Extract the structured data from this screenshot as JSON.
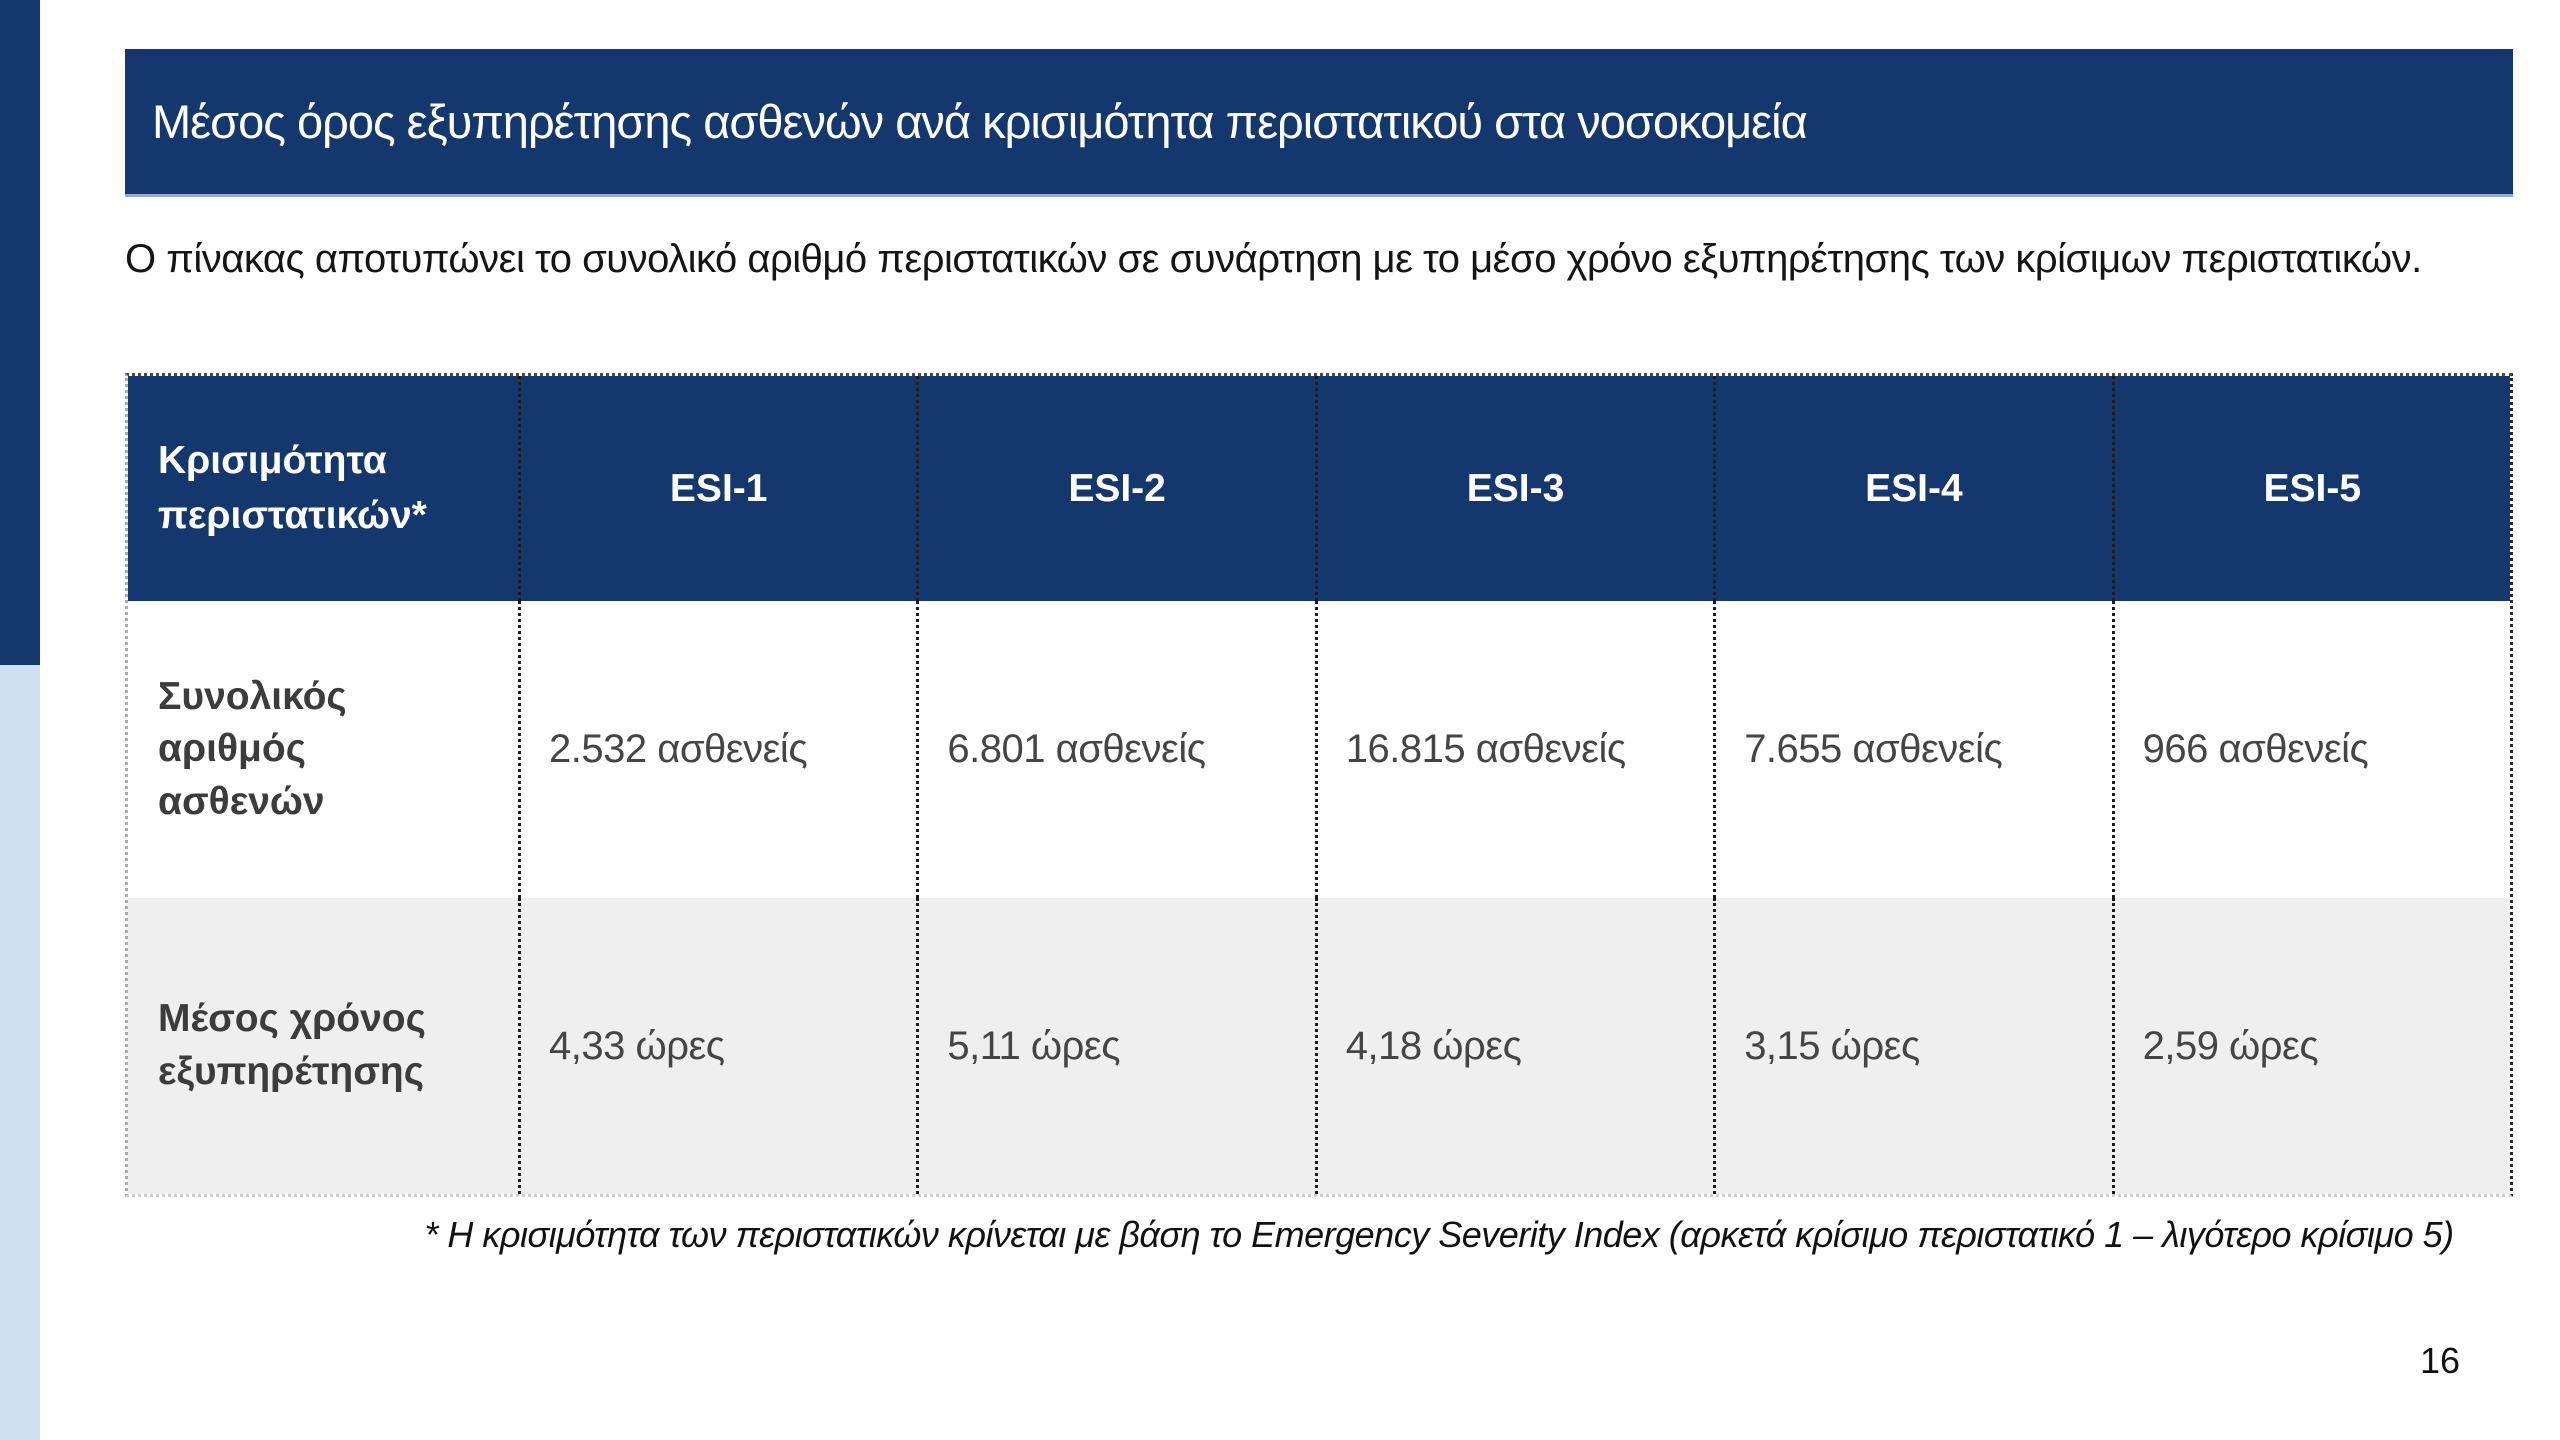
{
  "slide": {
    "title": "Μέσος όρος εξυπηρέτησης ασθενών ανά κρισιμότητα περιστατικού στα νοσοκομεία",
    "intro": "Ο πίνακας αποτυπώνει το συνολικό αριθμό περιστατικών σε συνάρτηση με το μέσο χρόνο εξυπηρέτησης των κρίσιμων περιστατικών.",
    "footnote": "* Η κρισιμότητα των περιστατικών κρίνεται με βάση το Emergency Severity Index (αρκετά κρίσιμο περιστατικό 1 – λιγότερο κρίσιμο 5)",
    "page_number": "16"
  },
  "table": {
    "header": {
      "label": "Κρισιμότητα\nπεριστατικών*",
      "columns": [
        "ESI-1",
        "ESI-2",
        "ESI-3",
        "ESI-4",
        "ESI-5"
      ]
    },
    "rows": [
      {
        "label": "Συνολικός\nαριθμός\nασθενών",
        "values": [
          "2.532 ασθενείς",
          "6.801 ασθενείς",
          "16.815 ασθενείς",
          "7.655 ασθενείς",
          "966 ασθενείς"
        ]
      },
      {
        "label": "Μέσος χρόνος\nεξυπηρέτησης",
        "values": [
          "4,33 ώρες",
          "5,11 ώρες",
          "4,18 ώρες",
          "3,15 ώρες",
          "2,59 ώρες"
        ]
      }
    ]
  },
  "colors": {
    "navy": "#14386E",
    "light_blue": "#CFE0F0",
    "row_alt_gray": "#EFEFEF",
    "title_underline": "#8FAAD4",
    "text_dark_gray": "#3c3c3c"
  }
}
